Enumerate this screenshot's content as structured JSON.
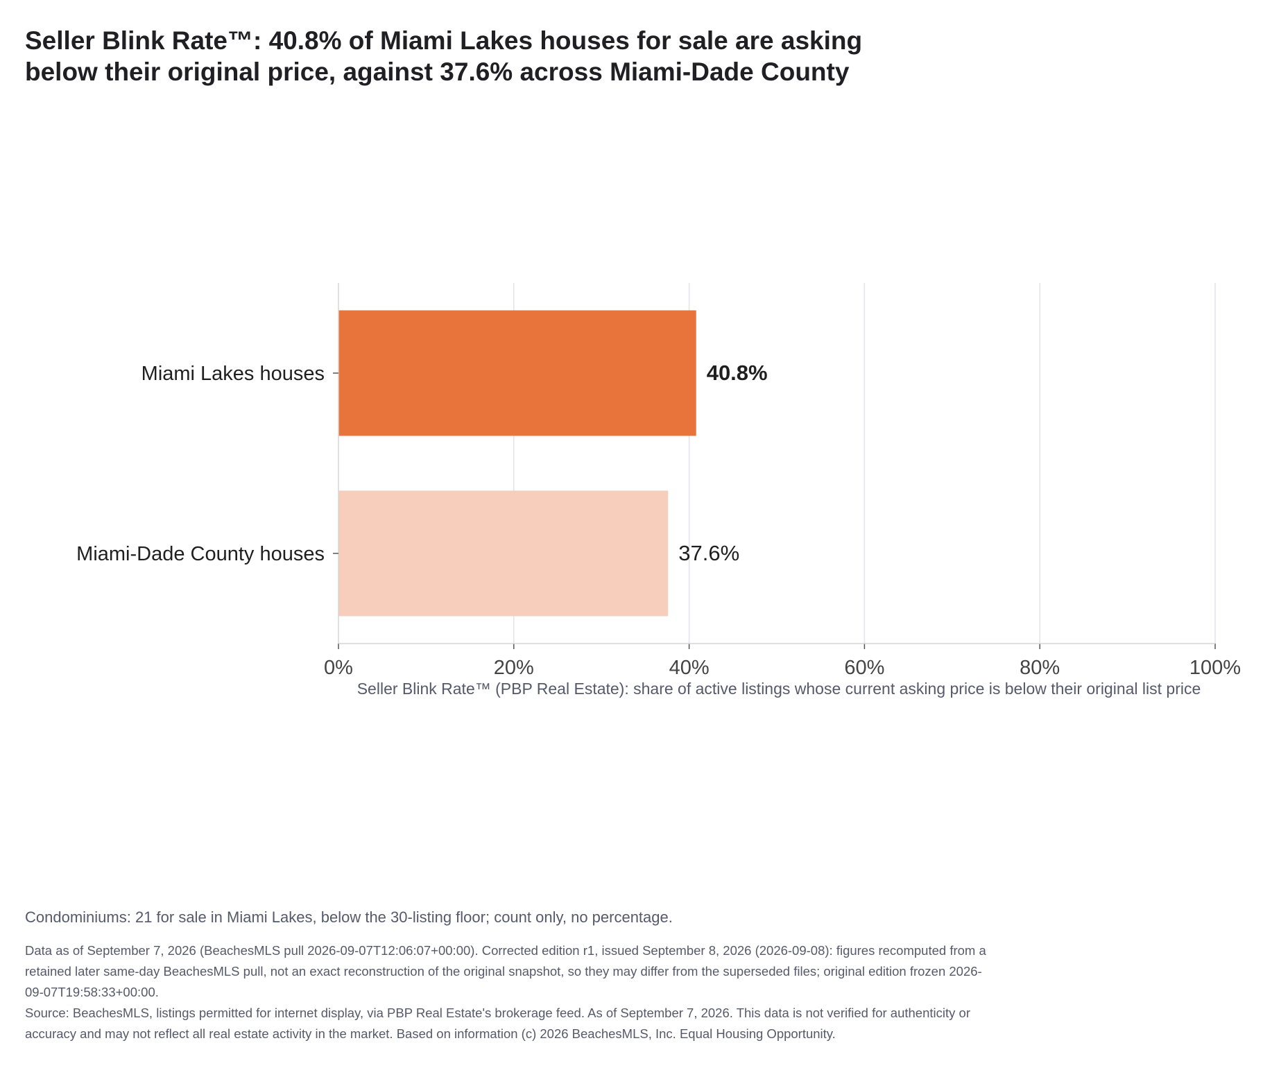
{
  "title": "Seller Blink Rate™: 40.8% of Miami Lakes houses for sale are asking below their original price, against 37.6% across Miami-Dade County",
  "chart_data": {
    "type": "bar",
    "orientation": "horizontal",
    "categories": [
      "Miami Lakes houses",
      "Miami-Dade County houses"
    ],
    "values": [
      40.8,
      37.6
    ],
    "value_labels": [
      "40.8%",
      "37.6%"
    ],
    "colors": [
      "#e8743b",
      "#f7cdbb"
    ],
    "xlabel": "Seller Blink Rate™ (PBP Real Estate): share of active listings whose current asking price is below their original list price",
    "xlim": [
      0,
      100
    ],
    "xticks": [
      0,
      20,
      40,
      60,
      80,
      100
    ],
    "xtick_labels": [
      "0%",
      "20%",
      "40%",
      "60%",
      "80%",
      "100%"
    ],
    "grid": "vertical"
  },
  "note": "Condominiums: 21 for sale in Miami Lakes, below the 30-listing floor; count only, no percentage.",
  "footer": {
    "data_line": "Data as of September 7, 2026 (BeachesMLS pull 2026-09-07T12:06:07+00:00). Corrected edition r1, issued September 8, 2026 (2026-09-08): figures recomputed from a retained later same-day BeachesMLS pull, not an exact reconstruction of the original snapshot, so they may differ from the superseded files; original edition frozen 2026-09-07T19:58:33+00:00.",
    "source_line": "Source: BeachesMLS, listings permitted for internet display, via PBP Real Estate's brokerage feed. As of September 7, 2026. This data is not verified for authenticity or accuracy and may not reflect all real estate activity in the market. Based on information (c) 2026 BeachesMLS, Inc. Equal Housing Opportunity."
  }
}
